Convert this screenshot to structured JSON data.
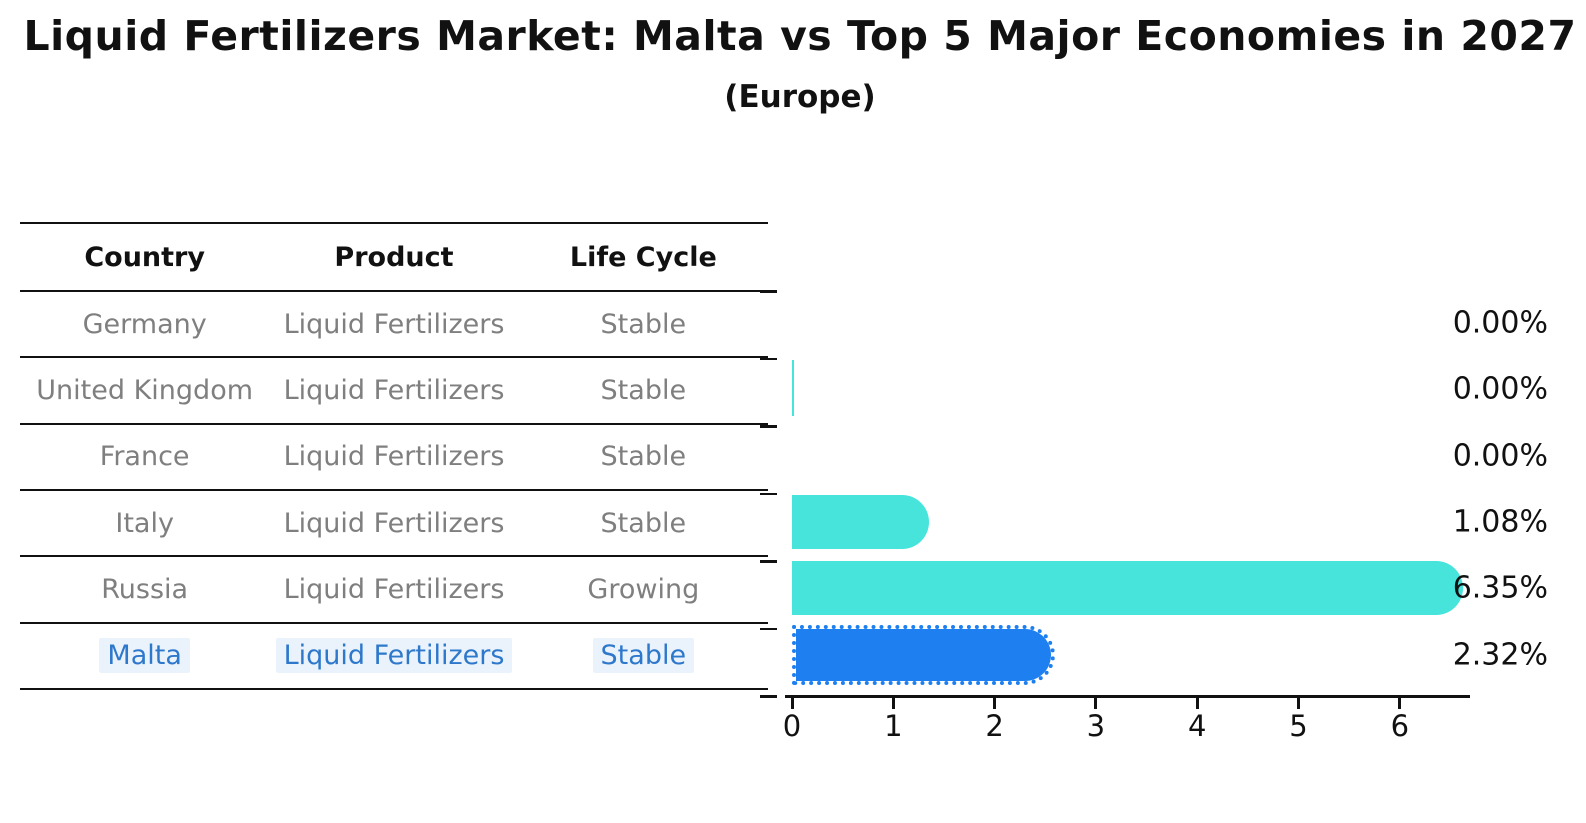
{
  "table": {
    "columns": [
      "Country",
      "Product",
      "Life Cycle"
    ],
    "rows": [
      {
        "country": "Germany",
        "product": "Liquid Fertilizers",
        "life_cycle": "Stable"
      },
      {
        "country": "United Kingdom",
        "product": "Liquid Fertilizers",
        "life_cycle": "Stable"
      },
      {
        "country": "France",
        "product": "Liquid Fertilizers",
        "life_cycle": "Stable"
      },
      {
        "country": "Italy",
        "product": "Liquid Fertilizers",
        "life_cycle": "Stable"
      },
      {
        "country": "Russia",
        "product": "Liquid Fertilizers",
        "life_cycle": "Growing"
      },
      {
        "country": "Malta",
        "product": "Liquid Fertilizers",
        "life_cycle": "Stable"
      }
    ],
    "highlight_text_color": "#2E78CC"
  },
  "chart_data": {
    "type": "bar",
    "orientation": "horizontal",
    "title": "Liquid Fertilizers Market: Malta vs Top 5 Major Economies in 2027",
    "subtitle": "(Europe)",
    "categories": [
      "Germany",
      "United Kingdom",
      "France",
      "Italy",
      "Russia",
      "Malta"
    ],
    "values": [
      0.0,
      0.0,
      0.0,
      1.08,
      6.35,
      2.32
    ],
    "value_labels": [
      "0.00%",
      "0.00%",
      "0.00%",
      "1.08%",
      "6.35%",
      "2.32%"
    ],
    "xlabel": "",
    "ylabel": "",
    "xlim": [
      0,
      6.7
    ],
    "xticks": [
      0,
      1,
      2,
      3,
      4,
      5,
      6
    ],
    "grid": false,
    "legend": false,
    "bar_color": "#47E4DC",
    "highlight_bar_color": "#1E80F0",
    "highlight_index": 5,
    "zero_edge_index": 1
  }
}
